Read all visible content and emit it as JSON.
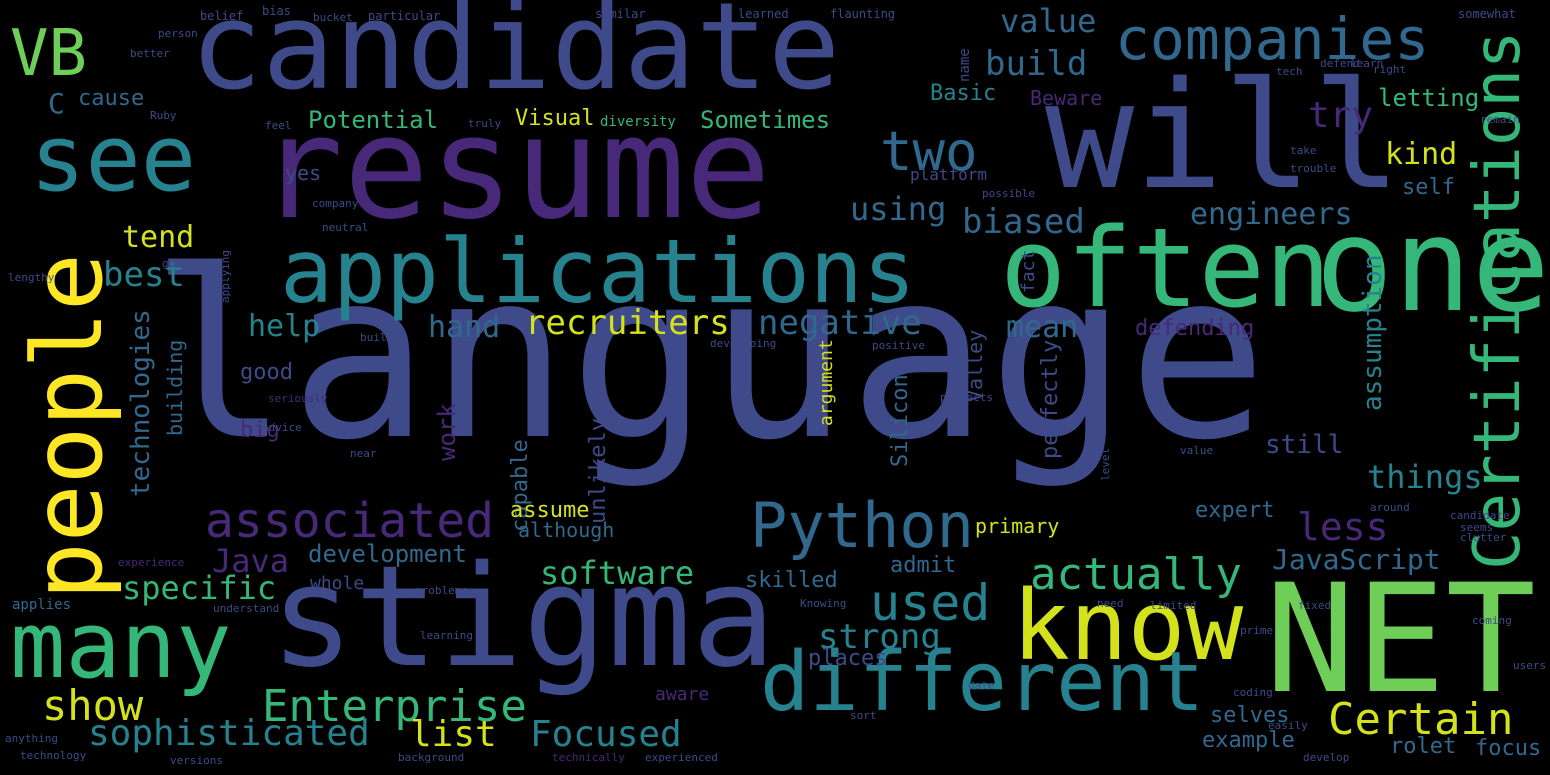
{
  "palette": {
    "background": "#000000",
    "purple": "#482878",
    "indigo": "#3e4a89",
    "blue": "#31688e",
    "teal": "#26828e",
    "green": "#35b779",
    "lime": "#6ece58",
    "yellow": "#d4e21b",
    "gold": "#fde725"
  },
  "words": [
    {
      "text": "language",
      "color": "#3e4a89"
    },
    {
      "text": "resume",
      "color": "#482878"
    },
    {
      "text": "candidate",
      "color": "#3e4a89"
    },
    {
      "text": "stigma",
      "color": "#3e4a89"
    },
    {
      "text": "will",
      "color": "#3e4a89"
    },
    {
      "text": "NET",
      "color": "#6ece58"
    },
    {
      "text": "one",
      "color": "#35b779"
    },
    {
      "text": "often",
      "color": "#35b779"
    },
    {
      "text": "applications",
      "color": "#26828e"
    },
    {
      "text": "see",
      "color": "#26828e"
    },
    {
      "text": "know",
      "color": "#d4e21b"
    },
    {
      "text": "many",
      "color": "#35b779"
    },
    {
      "text": "people",
      "color": "#fde725"
    },
    {
      "text": "different",
      "color": "#26828e"
    },
    {
      "text": "Certifications",
      "color": "#35b779"
    },
    {
      "text": "companies",
      "color": "#31688e"
    },
    {
      "text": "VB",
      "color": "#6ece58"
    },
    {
      "text": "Python",
      "color": "#31688e"
    },
    {
      "text": "associated",
      "color": "#482878"
    },
    {
      "text": "Enterprise",
      "color": "#35b779"
    },
    {
      "text": "Certain",
      "color": "#d4e21b"
    },
    {
      "text": "two",
      "color": "#31688e"
    },
    {
      "text": "actually",
      "color": "#35b779"
    },
    {
      "text": "used",
      "color": "#26828e"
    },
    {
      "text": "sophisticated",
      "color": "#26828e"
    },
    {
      "text": "list",
      "color": "#d4e21b"
    },
    {
      "text": "Focused",
      "color": "#26828e"
    },
    {
      "text": "show",
      "color": "#d4e21b"
    },
    {
      "text": "recruiters",
      "color": "#d4e21b"
    },
    {
      "text": "negative",
      "color": "#31688e"
    },
    {
      "text": "strong",
      "color": "#26828e"
    },
    {
      "text": "software",
      "color": "#35b779"
    },
    {
      "text": "specific",
      "color": "#35b779"
    },
    {
      "text": "less",
      "color": "#482878"
    },
    {
      "text": "build",
      "color": "#31688e"
    },
    {
      "text": "value",
      "color": "#31688e"
    },
    {
      "text": "biased",
      "color": "#31688e"
    },
    {
      "text": "engineers",
      "color": "#31688e"
    },
    {
      "text": "using",
      "color": "#31688e"
    },
    {
      "text": "tend",
      "color": "#d4e21b"
    },
    {
      "text": "best",
      "color": "#26828e"
    },
    {
      "text": "help",
      "color": "#26828e"
    },
    {
      "text": "hand",
      "color": "#31688e"
    },
    {
      "text": "mean",
      "color": "#31688e"
    },
    {
      "text": "kind",
      "color": "#d4e21b"
    },
    {
      "text": "try",
      "color": "#482878"
    },
    {
      "text": "things",
      "color": "#26828e"
    },
    {
      "text": "JavaScript",
      "color": "#31688e"
    },
    {
      "text": "Java",
      "color": "#482878"
    },
    {
      "text": "development",
      "color": "#31688e"
    },
    {
      "text": "assumption",
      "color": "#26828e"
    },
    {
      "text": "technologies",
      "color": "#31688e"
    },
    {
      "text": "building",
      "color": "#31688e"
    },
    {
      "text": "work",
      "color": "#482878"
    },
    {
      "text": "capable",
      "color": "#31688e"
    },
    {
      "text": "unlikely",
      "color": "#3e4a89"
    },
    {
      "text": "argument",
      "color": "#d4e21b"
    },
    {
      "text": "Silicon",
      "color": "#31688e"
    },
    {
      "text": "Valley",
      "color": "#3e4a89"
    },
    {
      "text": "perfectly",
      "color": "#3e4a89"
    },
    {
      "text": "fact",
      "color": "#3e4a89"
    },
    {
      "text": "defending",
      "color": "#482878"
    },
    {
      "text": "still",
      "color": "#3e4a89"
    },
    {
      "text": "expert",
      "color": "#31688e"
    },
    {
      "text": "primary",
      "color": "#d4e21b"
    },
    {
      "text": "admit",
      "color": "#31688e"
    },
    {
      "text": "skilled",
      "color": "#31688e"
    },
    {
      "text": "places",
      "color": "#3e4a89"
    },
    {
      "text": "aware",
      "color": "#482878"
    },
    {
      "text": "selves",
      "color": "#31688e"
    },
    {
      "text": "example",
      "color": "#31688e"
    },
    {
      "text": "rolet",
      "color": "#31688e"
    },
    {
      "text": "focus",
      "color": "#31688e"
    },
    {
      "text": "Potential",
      "color": "#35b779"
    },
    {
      "text": "Visual",
      "color": "#d4e21b"
    },
    {
      "text": "diversity",
      "color": "#35b779"
    },
    {
      "text": "Sometimes",
      "color": "#35b779"
    },
    {
      "text": "Basic",
      "color": "#26828e"
    },
    {
      "text": "Beware",
      "color": "#482878"
    },
    {
      "text": "letting",
      "color": "#35b779"
    },
    {
      "text": "self",
      "color": "#31688e"
    },
    {
      "text": "cause",
      "color": "#31688e"
    },
    {
      "text": "C",
      "color": "#31688e"
    },
    {
      "text": "yes",
      "color": "#3e4a89"
    },
    {
      "text": "platform",
      "color": "#3e4a89"
    },
    {
      "text": "good",
      "color": "#3e4a89"
    },
    {
      "text": "big",
      "color": "#482878"
    },
    {
      "text": "assume",
      "color": "#d4e21b"
    },
    {
      "text": "although",
      "color": "#31688e"
    },
    {
      "text": "whole",
      "color": "#3e4a89"
    },
    {
      "text": "name",
      "color": "#3e4a89"
    },
    {
      "text": "belief",
      "color": "#3e4a89"
    },
    {
      "text": "bias",
      "color": "#3e4a89"
    },
    {
      "text": "bucket",
      "color": "#3e4a89"
    },
    {
      "text": "particular",
      "color": "#3e4a89"
    },
    {
      "text": "similar",
      "color": "#3e4a89"
    },
    {
      "text": "learned",
      "color": "#3e4a89"
    },
    {
      "text": "flaunting",
      "color": "#3e4a89"
    },
    {
      "text": "somewhat",
      "color": "#3e4a89"
    },
    {
      "text": "person",
      "color": "#3e4a89"
    },
    {
      "text": "better",
      "color": "#3e4a89"
    },
    {
      "text": "Ruby",
      "color": "#3e4a89"
    },
    {
      "text": "feel",
      "color": "#3e4a89"
    },
    {
      "text": "truly",
      "color": "#3e4a89"
    },
    {
      "text": "right",
      "color": "#3e4a89"
    },
    {
      "text": "tech",
      "color": "#3e4a89"
    },
    {
      "text": "defend",
      "color": "#3e4a89"
    },
    {
      "text": "learn",
      "color": "#3e4a89"
    },
    {
      "text": "remain",
      "color": "#3e4a89"
    },
    {
      "text": "take",
      "color": "#3e4a89"
    },
    {
      "text": "trouble",
      "color": "#3e4a89"
    },
    {
      "text": "possible",
      "color": "#3e4a89"
    },
    {
      "text": "company",
      "color": "#3e4a89"
    },
    {
      "text": "neutral",
      "color": "#3e4a89"
    },
    {
      "text": "lengthy",
      "color": "#3e4a89"
    },
    {
      "text": "applying",
      "color": "#3e4a89"
    },
    {
      "text": "guru",
      "color": "#3e4a89"
    },
    {
      "text": "built",
      "color": "#3e4a89"
    },
    {
      "text": "developing",
      "color": "#3e4a89"
    },
    {
      "text": "positive",
      "color": "#3e4a89"
    },
    {
      "text": "projects",
      "color": "#3e4a89"
    },
    {
      "text": "seriously",
      "color": "#482878"
    },
    {
      "text": "advice",
      "color": "#3e4a89"
    },
    {
      "text": "near",
      "color": "#3e4a89"
    },
    {
      "text": "value",
      "color": "#3e4a89"
    },
    {
      "text": "level",
      "color": "#3e4a89"
    },
    {
      "text": "clutter",
      "color": "#3e4a89"
    },
    {
      "text": "around",
      "color": "#3e4a89"
    },
    {
      "text": "candidate",
      "color": "#3e4a89"
    },
    {
      "text": "seems",
      "color": "#3e4a89"
    },
    {
      "text": "experience",
      "color": "#482878"
    },
    {
      "text": "applies",
      "color": "#31688e"
    },
    {
      "text": "understand",
      "color": "#3e4a89"
    },
    {
      "text": "problems",
      "color": "#3e4a89"
    },
    {
      "text": "Knowing",
      "color": "#3e4a89"
    },
    {
      "text": "need",
      "color": "#3e4a89"
    },
    {
      "text": "limited",
      "color": "#3e4a89"
    },
    {
      "text": "learning",
      "color": "#3e4a89"
    },
    {
      "text": "coming",
      "color": "#3e4a89"
    },
    {
      "text": "experienced",
      "color": "#3e4a89"
    },
    {
      "text": "background",
      "color": "#3e4a89"
    },
    {
      "text": "technically",
      "color": "#482878"
    },
    {
      "text": "versions",
      "color": "#3e4a89"
    },
    {
      "text": "anything",
      "color": "#3e4a89"
    },
    {
      "text": "technology",
      "color": "#3e4a89"
    },
    {
      "text": "develop",
      "color": "#3e4a89"
    },
    {
      "text": "coding",
      "color": "#3e4a89"
    },
    {
      "text": "date",
      "color": "#3e4a89"
    },
    {
      "text": "sort",
      "color": "#3e4a89"
    },
    {
      "text": "prime",
      "color": "#3e4a89"
    },
    {
      "text": "users",
      "color": "#3e4a89"
    },
    {
      "text": "fixed",
      "color": "#3e4a89"
    },
    {
      "text": "easily",
      "color": "#3e4a89"
    }
  ]
}
